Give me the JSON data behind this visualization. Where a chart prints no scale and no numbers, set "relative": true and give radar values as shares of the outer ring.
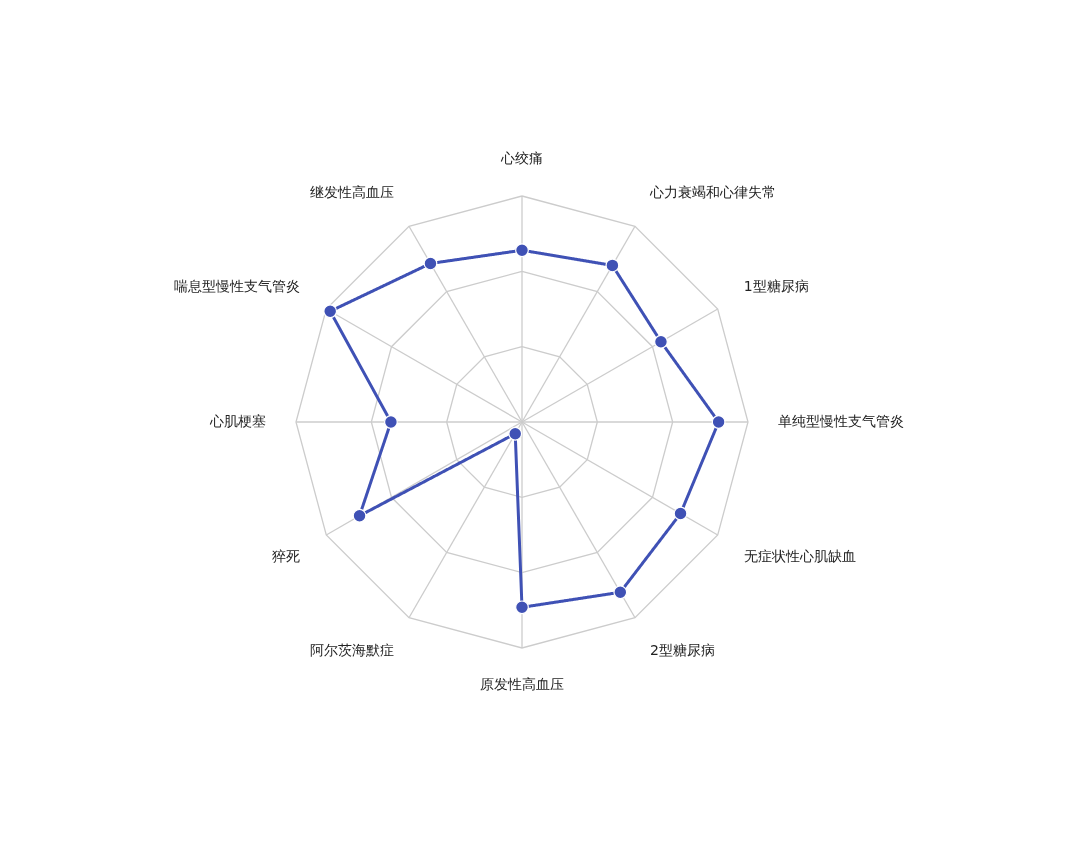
{
  "chart_data": {
    "type": "radar",
    "relative": true,
    "categories": [
      "心绞痛",
      "心力衰竭和心律失常",
      "1型糖尿病",
      "单纯型慢性支气管炎",
      "无症状性心肌缺血",
      "2型糖尿病",
      "原发性高血压",
      "阿尔茨海默症",
      "猝死",
      "心肌梗塞",
      "喘息型慢性支气管炎",
      "继发性高血压"
    ],
    "series": [
      {
        "color": "#3f51b5",
        "values": [
          0.76,
          0.8,
          0.71,
          0.87,
          0.81,
          0.87,
          0.82,
          0.06,
          0.83,
          0.58,
          0.98,
          0.81
        ]
      }
    ],
    "grid": true,
    "marker": "circle",
    "line_style": "solid"
  }
}
